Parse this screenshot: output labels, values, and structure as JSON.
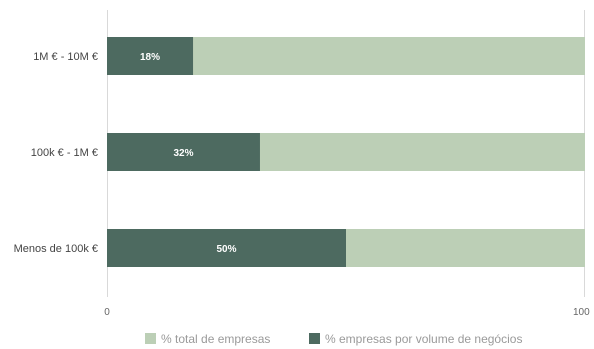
{
  "chart_data": {
    "type": "bar",
    "orientation": "horizontal",
    "categories": [
      "1M € - 10M €",
      "100k € - 1M €",
      "Menos de 100k €"
    ],
    "series": [
      {
        "name": "% total de empresas",
        "values": [
          100,
          100,
          100
        ],
        "color": "#bccfb6"
      },
      {
        "name": "% empresas por volume de negócios",
        "values": [
          18,
          32,
          50
        ],
        "color": "#4d6a60",
        "data_labels": [
          "18%",
          "32%",
          "50%"
        ]
      }
    ],
    "xlim": [
      0,
      100
    ],
    "x_ticks": [
      0,
      100
    ],
    "title": "",
    "xlabel": "",
    "ylabel": "",
    "grid": false,
    "legend": "bottom"
  }
}
